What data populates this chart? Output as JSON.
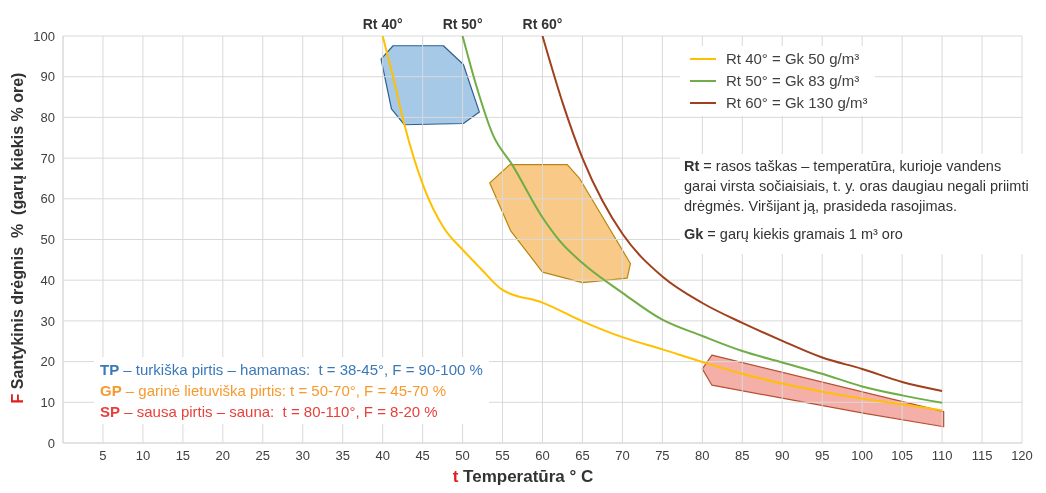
{
  "chart_data": {
    "type": "line",
    "xlabel": "t Temperatūra  ° C",
    "ylabel": "F Santykinis drėgnis  %  (garų kiekis % ore)",
    "xlim": [
      0,
      120
    ],
    "xticks": [
      5,
      10,
      15,
      20,
      25,
      30,
      35,
      40,
      45,
      50,
      55,
      60,
      65,
      70,
      75,
      80,
      85,
      90,
      95,
      100,
      105,
      110,
      115,
      120
    ],
    "ylim": [
      0,
      100
    ],
    "yticks": [
      0,
      10,
      20,
      30,
      40,
      50,
      60,
      70,
      80,
      90,
      100
    ],
    "grid": true,
    "legend": "top right",
    "marker": "none",
    "line_style": "solid",
    "series": [
      {
        "name": "Rt 40° = Gk 50 g/m³",
        "color": "#ffc000",
        "x": [
          40,
          41.3,
          42.7,
          45.2,
          47.6,
          50.1,
          52.2,
          55,
          60,
          65,
          70,
          75,
          80,
          85,
          90,
          95,
          100,
          105,
          110
        ],
        "values": [
          100,
          90,
          78.4,
          62.6,
          53,
          47.3,
          43,
          37.6,
          34.5,
          29.9,
          26,
          23,
          19.9,
          17,
          14.6,
          12.6,
          10.9,
          9.5,
          8
        ]
      },
      {
        "name": "Rt 50° = Gk 83 g/m³",
        "color": "#70ad47",
        "x": [
          50,
          51.7,
          53.8,
          56.2,
          60,
          62.1,
          65,
          70,
          75,
          80,
          85,
          90,
          95,
          100,
          105,
          110
        ],
        "values": [
          100,
          87.9,
          75.7,
          68.4,
          55.4,
          49.8,
          44.2,
          36.9,
          30.3,
          26.3,
          22.6,
          19.8,
          17,
          13.9,
          11.7,
          9.9
        ]
      },
      {
        "name": "Rt 60° = Gk 130 g/m³",
        "color": "#a0401c",
        "x": [
          60,
          62.5,
          65,
          67.5,
          70,
          75,
          80,
          85,
          90,
          95,
          100,
          105,
          110
        ],
        "values": [
          100,
          83.7,
          70,
          59.5,
          51.4,
          40.9,
          34.4,
          29.5,
          25.1,
          21,
          18.2,
          15,
          12.8
        ]
      }
    ],
    "annotations": [
      "Rt 40°",
      "Rt 50°",
      "Rt 60°",
      "Rt = rasos taškas – temperatūra, kurioje vandens garai virsta sočiaisiais, t. y. oras daugiau negali priimti drėgmės. Viršijant ją, prasideda rasojimas.",
      "Gk = garų kiekis gramais 1 m³ oro",
      "TP – turkiška pirtis – hamamas:  t = 38-45°, F = 90-100 %",
      "GP – garinė lietuviška pirtis: t = 50-70°, F = 45-70 %",
      "SP – sausa pirtis – sauna:  t = 80-110°, F = 8-20 %"
    ]
  }
}
